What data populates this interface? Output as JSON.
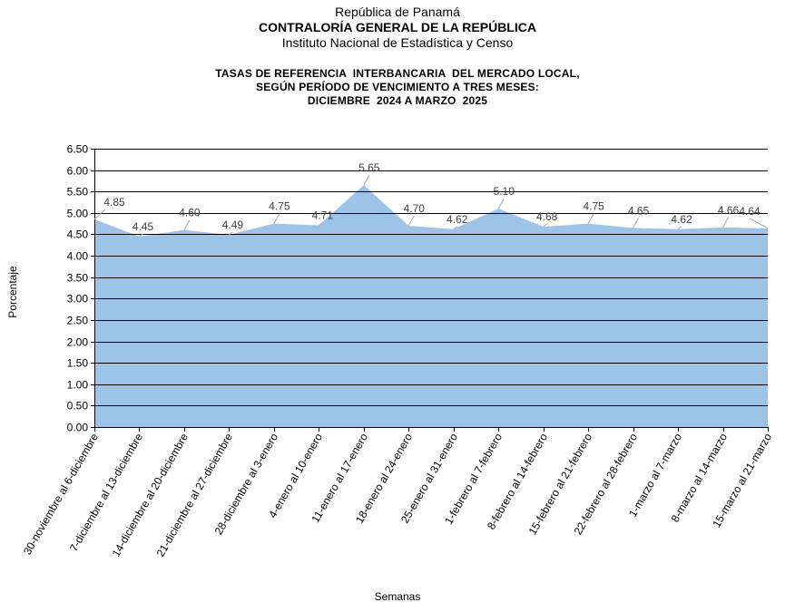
{
  "header": {
    "line1": "República de Panamá",
    "line2": "CONTRALORÍA GENERAL DE LA REPÚBLICA",
    "line3": "Instituto Nacional de Estadística y Censo"
  },
  "chart_data": {
    "type": "area",
    "title_lines": [
      "TASAS DE REFERENCIA  INTERBANCARIA  DEL MERCADO LOCAL,",
      "SEGÚN PERÍODO DE VENCIMIENTO A TRES MESES:",
      "DICIEMBRE  2024 A MARZO  2025"
    ],
    "xlabel": "Semanas",
    "ylabel": "Porcentaje",
    "ylim": [
      0,
      6.5
    ],
    "ytick_step": 0.5,
    "grid": "horizontal-above-data",
    "categories": [
      "30-noviembre al 6-diciembre",
      "7-diciembre al 13-diciembre",
      "14-diciembre al 20-diciembre",
      "21-diciembre al 27-diciembre",
      "28-diciembre al 3-enero",
      "4-enero al 10-enero",
      "11-enero al 17-enero",
      "18-enero al 24-enero",
      "25-enero al 31-enero",
      "1-febrero al 7-febrero",
      "8-febrero al 14-febrero",
      "15-febrero al 21-febrero",
      "22-febrero al 28-febrero",
      "1-marzo al 7-marzo",
      "8-marzo al 14-marzo",
      "15-marzo al 21-marzo"
    ],
    "values": [
      4.85,
      4.45,
      4.6,
      4.49,
      4.75,
      4.71,
      5.65,
      4.7,
      4.62,
      5.1,
      4.68,
      4.75,
      4.65,
      4.62,
      4.66,
      4.64
    ],
    "value_labels": [
      "4.85",
      "4.45",
      "4.60",
      "4.49",
      "4.75",
      "4.71",
      "5.65",
      "4.70",
      "4.62",
      "5.10",
      "4.68",
      "4.75",
      "4.65",
      "4.62",
      "4.66",
      "4.64"
    ],
    "colors": {
      "fill": "#9dc3e6",
      "gridline": "#000000",
      "axis": "#000000",
      "label_text": "#404040",
      "leader": "#a6a6a6"
    }
  }
}
